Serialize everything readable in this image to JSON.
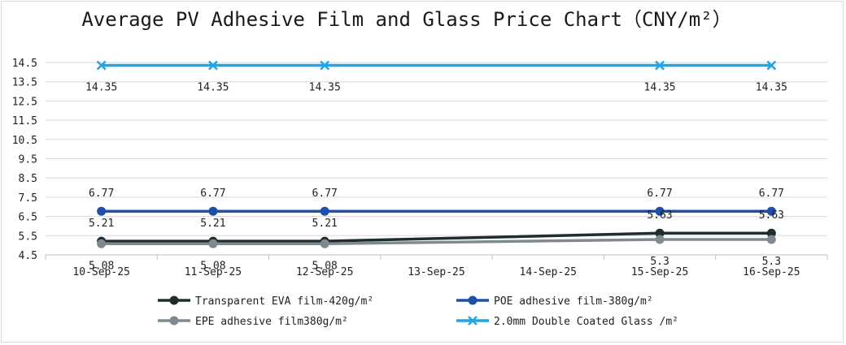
{
  "chart_data": {
    "type": "line",
    "title": "Average PV Adhesive Film and Glass Price Chart（CNY/m²）",
    "categories": [
      "10-Sep-25",
      "11-Sep-25",
      "12-Sep-25",
      "13-Sep-25",
      "14-Sep-25",
      "15-Sep-25",
      "16-Sep-25"
    ],
    "y_ticks": [
      "4.5",
      "5.5",
      "6.5",
      "7.5",
      "8.5",
      "9.5",
      "10.5",
      "11.5",
      "12.5",
      "13.5",
      "14.5"
    ],
    "ylim": [
      4.5,
      14.5
    ],
    "grid": true,
    "legend_position": "bottom",
    "series": [
      {
        "name": "Transparent EVA film-420g/m²",
        "color": "#1f2d2d",
        "marker": "circle",
        "values": [
          5.21,
          5.21,
          5.21,
          null,
          null,
          5.63,
          5.63
        ],
        "labels": [
          "5.21",
          "5.21",
          "5.21",
          null,
          null,
          "5.63",
          "5.63"
        ],
        "label_pos": "above"
      },
      {
        "name": "POE adhesive film-380g/m²",
        "color": "#1f4fa8",
        "marker": "circle",
        "values": [
          6.77,
          6.77,
          6.77,
          null,
          null,
          6.77,
          6.77
        ],
        "labels": [
          "6.77",
          "6.77",
          "6.77",
          null,
          null,
          "6.77",
          "6.77"
        ],
        "label_pos": "above"
      },
      {
        "name": "EPE adhesive film380g/m²",
        "color": "#7f8a8e",
        "marker": "circle",
        "values": [
          5.08,
          5.08,
          5.08,
          null,
          null,
          5.3,
          5.3
        ],
        "labels": [
          "5.08",
          "5.08",
          "5.08",
          null,
          null,
          "5.3",
          "5.3"
        ],
        "label_pos": "below"
      },
      {
        "name": "2.0mm Double Coated Glass /m²",
        "color": "#21a4e8",
        "marker": "x",
        "values": [
          14.35,
          14.35,
          14.35,
          null,
          null,
          14.35,
          14.35
        ],
        "labels": [
          "14.35",
          "14.35",
          "14.35",
          null,
          null,
          "14.35",
          "14.35"
        ],
        "label_pos": "below"
      }
    ]
  }
}
